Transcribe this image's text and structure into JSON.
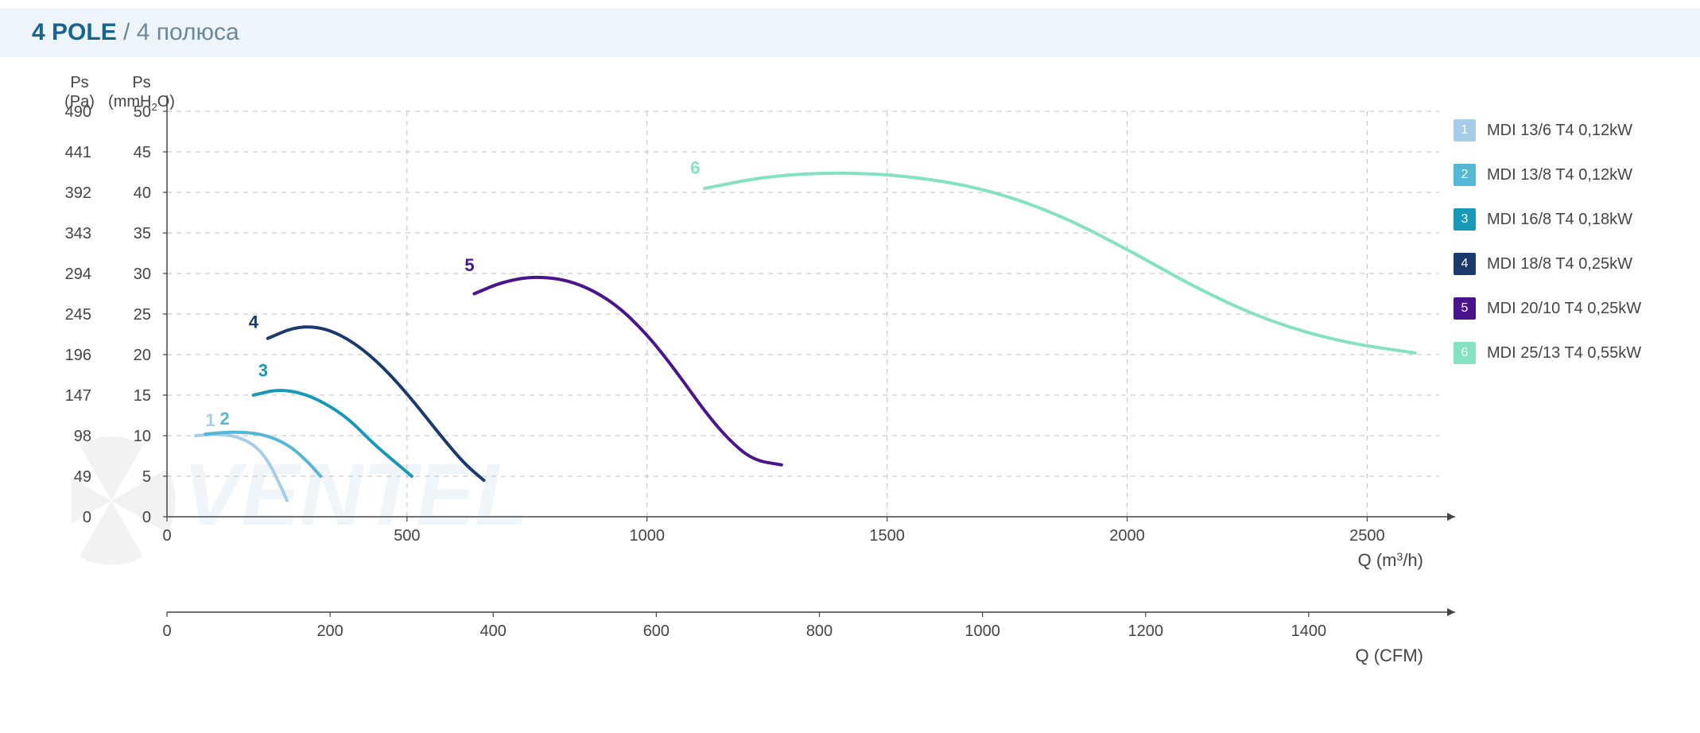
{
  "title": {
    "emph": "4 POLE",
    "sep": " / ",
    "rest": "4 полюса"
  },
  "chart": {
    "type": "line",
    "background_color": "#ffffff",
    "grid_color": "#bfbfbf",
    "axis_color": "#444444",
    "label_color": "#444444",
    "label_fontsize": 22,
    "tick_fontsize": 20,
    "y_left_primary": {
      "title": "Ps\n(Pa)",
      "ticks": [
        0,
        49,
        98,
        147,
        196,
        245,
        294,
        343,
        392,
        441,
        490
      ]
    },
    "y_left_secondary": {
      "title": "Ps\n(mmH₂O)",
      "ticks": [
        0,
        5,
        10,
        15,
        20,
        25,
        30,
        35,
        40,
        45,
        50
      ]
    },
    "x_primary": {
      "title": "Q (m³/h)",
      "ticks": [
        0,
        500,
        1000,
        1500,
        2000,
        2500
      ],
      "min": 0,
      "max": 2650
    },
    "x_secondary": {
      "title": "Q (CFM)",
      "ticks": [
        0,
        200,
        400,
        600,
        800,
        1000,
        1200,
        1400
      ],
      "min": 0,
      "max": 1560
    },
    "y_min": 0,
    "y_max": 50,
    "line_width": 4,
    "curve_label_fontsize": 22,
    "series": [
      {
        "id": "1",
        "color": "#a6cde8",
        "label_xy": [
          100,
          10.4
        ],
        "points": [
          [
            60,
            10
          ],
          [
            100,
            10.2
          ],
          [
            140,
            10
          ],
          [
            180,
            9
          ],
          [
            210,
            7
          ],
          [
            235,
            4
          ],
          [
            250,
            2
          ]
        ]
      },
      {
        "id": "2",
        "color": "#54b7d5",
        "label_xy": [
          130,
          10.6
        ],
        "points": [
          [
            80,
            10.2
          ],
          [
            140,
            10.5
          ],
          [
            200,
            10.2
          ],
          [
            250,
            9
          ],
          [
            290,
            7
          ],
          [
            320,
            5
          ]
        ]
      },
      {
        "id": "3",
        "color": "#1798b8",
        "label_xy": [
          210,
          16.5
        ],
        "points": [
          [
            180,
            15
          ],
          [
            230,
            15.7
          ],
          [
            280,
            15.3
          ],
          [
            330,
            14
          ],
          [
            380,
            12
          ],
          [
            430,
            9
          ],
          [
            480,
            6.5
          ],
          [
            510,
            5
          ]
        ]
      },
      {
        "id": "4",
        "color": "#1a3a6e",
        "label_xy": [
          190,
          22.5
        ],
        "points": [
          [
            210,
            22
          ],
          [
            270,
            23.5
          ],
          [
            330,
            23.3
          ],
          [
            390,
            21.5
          ],
          [
            450,
            18.5
          ],
          [
            510,
            14.5
          ],
          [
            570,
            10
          ],
          [
            620,
            6.5
          ],
          [
            660,
            4.5
          ]
        ]
      },
      {
        "id": "5",
        "color": "#4a148c",
        "label_xy": [
          640,
          29.5
        ],
        "points": [
          [
            640,
            27.5
          ],
          [
            700,
            29
          ],
          [
            770,
            29.7
          ],
          [
            850,
            29
          ],
          [
            930,
            26.5
          ],
          [
            1000,
            22.5
          ],
          [
            1060,
            18
          ],
          [
            1120,
            13
          ],
          [
            1170,
            9.5
          ],
          [
            1220,
            7
          ],
          [
            1280,
            6.4
          ]
        ]
      },
      {
        "id": "6",
        "color": "#84e1c1",
        "label_xy": [
          1110,
          41.5
        ],
        "points": [
          [
            1120,
            40.5
          ],
          [
            1250,
            42
          ],
          [
            1400,
            42.5
          ],
          [
            1550,
            42
          ],
          [
            1700,
            40.5
          ],
          [
            1850,
            37.5
          ],
          [
            2000,
            33
          ],
          [
            2150,
            28
          ],
          [
            2300,
            24
          ],
          [
            2450,
            21.5
          ],
          [
            2600,
            20.2
          ]
        ]
      }
    ]
  },
  "legend": {
    "items": [
      {
        "num": "1",
        "color": "#a6cde8",
        "label": "MDI 13/6 T4 0,12kW"
      },
      {
        "num": "2",
        "color": "#54b7d5",
        "label": "MDI 13/8 T4 0,12kW"
      },
      {
        "num": "3",
        "color": "#1798b8",
        "label": "MDI 16/8 T4 0,18kW"
      },
      {
        "num": "4",
        "color": "#1a3a6e",
        "label": "MDI 18/8 T4 0,25kW"
      },
      {
        "num": "5",
        "color": "#4a148c",
        "label": "MDI 20/10 T4 0,25kW"
      },
      {
        "num": "6",
        "color": "#84e1c1",
        "label": "MDI 25/13 T4 0,55kW"
      }
    ]
  },
  "watermark": {
    "text": "VENTEL",
    "color": "#7aa8d6"
  }
}
